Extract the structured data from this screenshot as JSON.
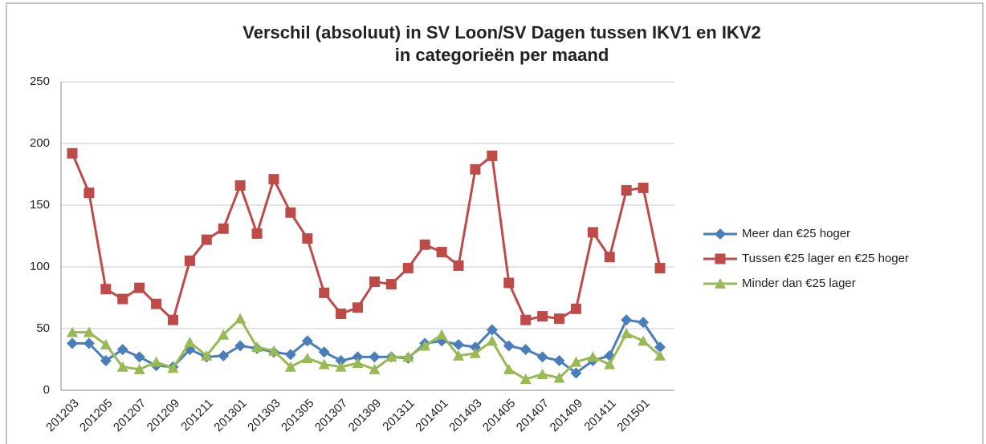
{
  "chart_data": {
    "type": "line",
    "title": [
      "Verschil (absoluut) in SV Loon/SV Dagen tussen IKV1 en IKV2",
      "in categorieën per maand"
    ],
    "categories": [
      "201203",
      null,
      "201205",
      null,
      "201207",
      null,
      "201209",
      null,
      "201211",
      null,
      "201301",
      null,
      "201303",
      null,
      "201305",
      null,
      "201307",
      null,
      "201309",
      null,
      "201311",
      null,
      "201401",
      null,
      "201403",
      null,
      "201405",
      null,
      "201407",
      null,
      "201409",
      null,
      "201411",
      null,
      "201501",
      null
    ],
    "series": [
      {
        "name": "Meer dan €25 hoger",
        "color": "#4a7ebb",
        "marker": "diamond",
        "values": [
          38,
          38,
          24,
          33,
          27,
          20,
          19,
          33,
          27,
          28,
          36,
          34,
          31,
          29,
          40,
          31,
          24,
          27,
          27,
          27,
          26,
          38,
          40,
          37,
          35,
          49,
          36,
          33,
          27,
          24,
          14,
          24,
          28,
          57,
          55,
          35
        ]
      },
      {
        "name": "Tussen €25 lager en €25 hoger",
        "color": "#be4b48",
        "marker": "square",
        "values": [
          192,
          160,
          82,
          74,
          83,
          70,
          57,
          105,
          122,
          131,
          166,
          127,
          171,
          144,
          123,
          79,
          62,
          67,
          88,
          86,
          99,
          118,
          112,
          101,
          179,
          190,
          87,
          57,
          60,
          58,
          66,
          128,
          108,
          162,
          164,
          99
        ]
      },
      {
        "name": "Minder dan €25 lager",
        "color": "#98b954",
        "marker": "triangle",
        "values": [
          47,
          47,
          37,
          19,
          17,
          23,
          18,
          39,
          28,
          45,
          58,
          35,
          32,
          19,
          26,
          21,
          19,
          22,
          17,
          27,
          27,
          36,
          45,
          28,
          30,
          40,
          17,
          9,
          13,
          10,
          23,
          27,
          21,
          46,
          40,
          28
        ]
      }
    ],
    "ylim": [
      0,
      250
    ],
    "yticks": [
      0,
      50,
      100,
      150,
      200,
      250
    ],
    "grid": true,
    "legend": "right"
  }
}
